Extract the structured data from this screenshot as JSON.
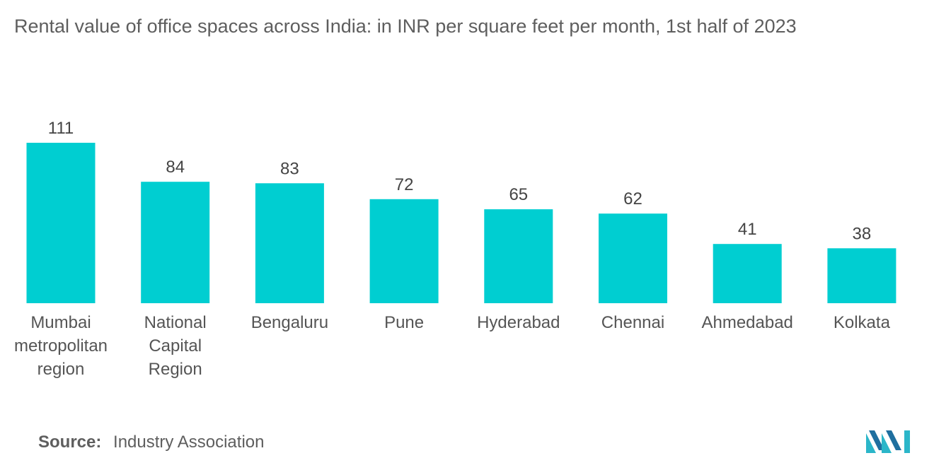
{
  "title": "Rental value of office spaces across India: in INR per square feet per month, 1st half of 2023",
  "source": {
    "label": "Source:",
    "text": "Industry Association"
  },
  "colors": {
    "bar": "#00CED1",
    "text": "#555555"
  },
  "chart_data": {
    "type": "bar",
    "categories": [
      [
        "Mumbai",
        "metropolitan",
        "region"
      ],
      [
        "National",
        "Capital",
        "Region"
      ],
      [
        "Bengaluru"
      ],
      [
        "Pune"
      ],
      [
        "Hyderabad"
      ],
      [
        "Chennai"
      ],
      [
        "Ahmedabad"
      ],
      [
        "Kolkata"
      ]
    ],
    "values": [
      111,
      84,
      83,
      72,
      65,
      62,
      41,
      38
    ],
    "title": "Rental value of office spaces across India: in INR per square feet per month, 1st half of 2023",
    "xlabel": "",
    "ylabel": "",
    "grid": false,
    "legend": "none"
  }
}
